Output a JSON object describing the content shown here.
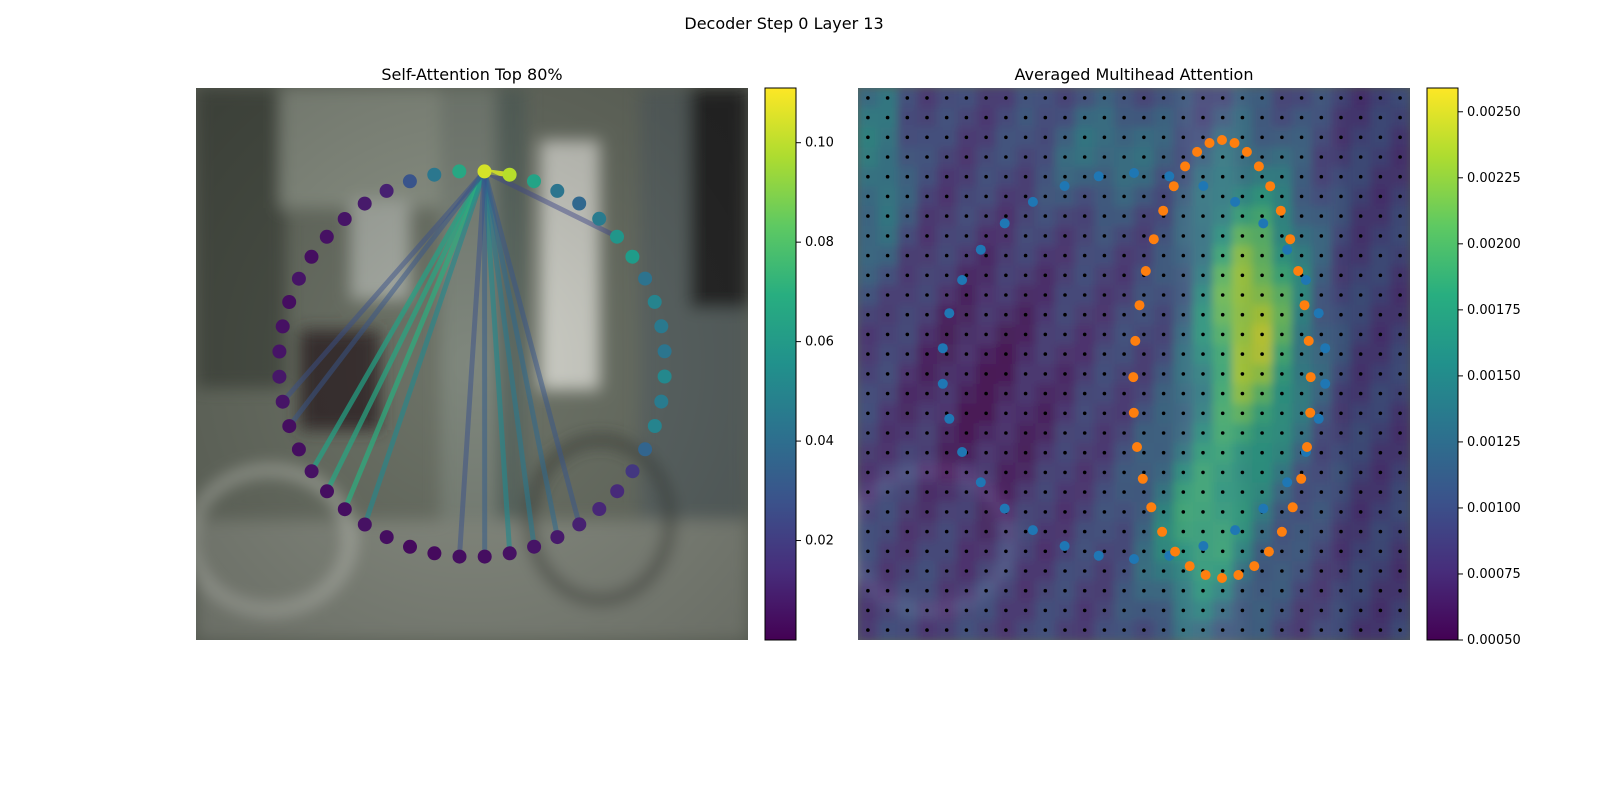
{
  "figure": {
    "suptitle": "Decoder Step 0 Layer 13"
  },
  "chart_data": [
    {
      "type": "scatter",
      "title": "Self-Attention Top 80%",
      "points": 48,
      "source_point_index": 0,
      "colorbar": {
        "colormap": "viridis",
        "min": 0.0,
        "max": 0.111,
        "ticks": [
          0.02,
          0.04,
          0.06,
          0.08,
          0.1
        ],
        "tick_labels": [
          "0.02",
          "0.04",
          "0.06",
          "0.08",
          "0.10"
        ]
      },
      "attention_values": [
        0.104,
        0.099,
        0.064,
        0.043,
        0.037,
        0.046,
        0.058,
        0.061,
        0.042,
        0.05,
        0.045,
        0.043,
        0.052,
        0.046,
        0.05,
        0.036,
        0.018,
        0.013,
        0.012,
        0.01,
        0.008,
        0.006,
        0.005,
        0.004,
        0.004,
        0.003,
        0.003,
        0.004,
        0.005,
        0.004,
        0.004,
        0.005,
        0.004,
        0.004,
        0.006,
        0.007,
        0.006,
        0.005,
        0.004,
        0.006,
        0.004,
        0.005,
        0.006,
        0.008,
        0.01,
        0.029,
        0.044,
        0.066
      ],
      "links": [
        {
          "to": 1,
          "weight": 0.104
        },
        {
          "to": 31,
          "weight": 0.064
        },
        {
          "to": 30,
          "weight": 0.066
        },
        {
          "to": 29,
          "weight": 0.069
        },
        {
          "to": 28,
          "weight": 0.052
        },
        {
          "to": 33,
          "weight": 0.03
        },
        {
          "to": 34,
          "weight": 0.028
        },
        {
          "to": 22,
          "weight": 0.052
        },
        {
          "to": 21,
          "weight": 0.045
        },
        {
          "to": 20,
          "weight": 0.038
        },
        {
          "to": 23,
          "weight": 0.033
        },
        {
          "to": 19,
          "weight": 0.03
        },
        {
          "to": 24,
          "weight": 0.028
        },
        {
          "to": 6,
          "weight": 0.024
        }
      ]
    },
    {
      "type": "heatmap",
      "title": "Averaged Multihead Attention",
      "grid": {
        "rows": 28,
        "cols": 28
      },
      "colorbar": {
        "colormap": "viridis",
        "min": 0.0005,
        "max": 0.00259,
        "ticks": [
          0.0005,
          0.00075,
          0.001,
          0.00125,
          0.0015,
          0.00175,
          0.002,
          0.00225,
          0.0025
        ],
        "tick_labels": [
          "0.00050",
          "0.00075",
          "0.00100",
          "0.00125",
          "0.00150",
          "0.00175",
          "0.00200",
          "0.00225",
          "0.00250"
        ]
      },
      "series": [
        {
          "color": "#1f77b4",
          "points": 34
        },
        {
          "color": "#ff7f0e",
          "points": 38
        }
      ]
    }
  ]
}
